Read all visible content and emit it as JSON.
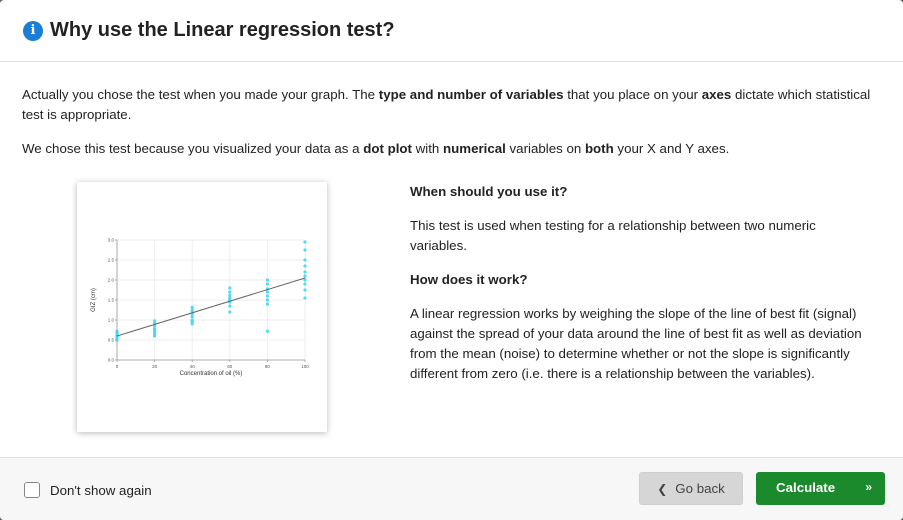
{
  "header": {
    "title": "Why use the Linear regression test?",
    "info_glyph": "i"
  },
  "intro": {
    "p1": [
      {
        "t": "Actually you chose the test when you made your graph. The ",
        "b": false
      },
      {
        "t": "type and number of variables",
        "b": true
      },
      {
        "t": " that you place on your ",
        "b": false
      },
      {
        "t": "axes",
        "b": true
      },
      {
        "t": " dictate which statistical test is appropriate.",
        "b": false
      }
    ],
    "p2": [
      {
        "t": "We chose this test because you visualized your data as a ",
        "b": false
      },
      {
        "t": "dot plot",
        "b": true
      },
      {
        "t": " with ",
        "b": false
      },
      {
        "t": "numerical",
        "b": true
      },
      {
        "t": " variables on ",
        "b": false
      },
      {
        "t": "both",
        "b": true
      },
      {
        "t": " your X and Y axes.",
        "b": false
      }
    ]
  },
  "info": {
    "when_heading": "When should you use it?",
    "when_text": "This test is used when testing for a relationship between two numeric variables.",
    "how_heading": "How does it work?",
    "how_text": "A linear regression works by weighing the slope of the line of best fit (signal) against the spread of your data around the line of best fit as well as deviation from the mean (noise) to determine whether or not the slope is significantly different from zero (i.e. there is a relationship between the variables)."
  },
  "chart_data": {
    "type": "scatter",
    "xlabel": "Concentration of oil (%)",
    "ylabel": "GIZ (cm)",
    "x_ticks": [
      "0",
      "20",
      "40",
      "60",
      "80",
      "100"
    ],
    "y_ticks": [
      "0.0",
      "0.5",
      "1.0",
      "1.5",
      "2.0",
      "2.5",
      "3.0"
    ],
    "xlim": [
      0,
      100
    ],
    "ylim": [
      0,
      3.0
    ],
    "grid": true,
    "point_color": "#35d6f0",
    "line_color": "#666666",
    "fit_line": {
      "x": [
        0,
        100
      ],
      "y": [
        0.6,
        2.05
      ]
    },
    "points": [
      [
        0,
        0.55
      ],
      [
        0,
        0.62
      ],
      [
        0,
        0.68
      ],
      [
        0,
        0.72
      ],
      [
        0,
        0.5
      ],
      [
        0,
        0.6
      ],
      [
        20,
        0.6
      ],
      [
        20,
        0.7
      ],
      [
        20,
        0.78
      ],
      [
        20,
        0.85
      ],
      [
        20,
        0.92
      ],
      [
        20,
        0.98
      ],
      [
        20,
        0.65
      ],
      [
        20,
        0.75
      ],
      [
        40,
        0.9
      ],
      [
        40,
        1.0
      ],
      [
        40,
        1.08
      ],
      [
        40,
        1.15
      ],
      [
        40,
        1.25
      ],
      [
        40,
        1.32
      ],
      [
        40,
        0.95
      ],
      [
        40,
        1.2
      ],
      [
        60,
        1.2
      ],
      [
        60,
        1.35
      ],
      [
        60,
        1.45
      ],
      [
        60,
        1.55
      ],
      [
        60,
        1.62
      ],
      [
        60,
        1.7
      ],
      [
        60,
        1.8
      ],
      [
        60,
        1.5
      ],
      [
        80,
        0.72
      ],
      [
        80,
        1.4
      ],
      [
        80,
        1.5
      ],
      [
        80,
        1.6
      ],
      [
        80,
        1.7
      ],
      [
        80,
        1.78
      ],
      [
        80,
        1.9
      ],
      [
        80,
        2.0
      ],
      [
        100,
        1.55
      ],
      [
        100,
        1.75
      ],
      [
        100,
        1.9
      ],
      [
        100,
        2.0
      ],
      [
        100,
        2.1
      ],
      [
        100,
        2.2
      ],
      [
        100,
        2.35
      ],
      [
        100,
        2.5
      ],
      [
        100,
        2.75
      ],
      [
        100,
        2.95
      ]
    ]
  },
  "footer": {
    "dont_show_label": "Don't show again",
    "back_label": "Go back",
    "back_chevron": "❮",
    "calculate_label": "Calculate",
    "calculate_chevron": "»"
  },
  "colors": {
    "accent": "#1a7ed6",
    "calculate_bg": "#1a8a2c",
    "back_bg": "#d6d6d6"
  }
}
